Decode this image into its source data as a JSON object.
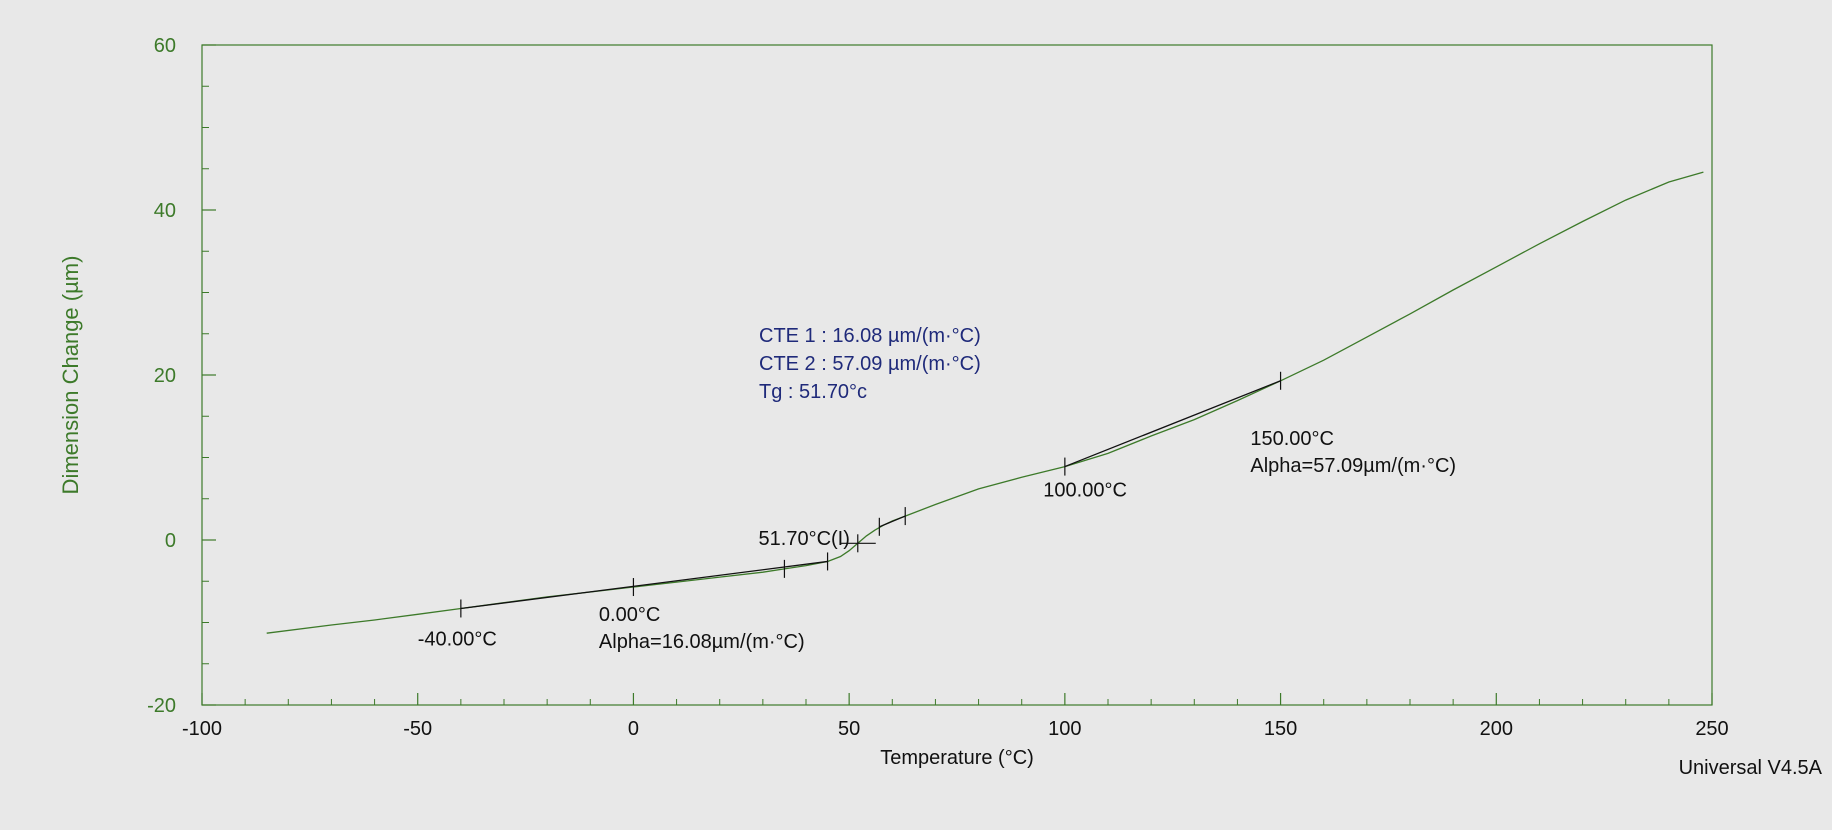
{
  "chart_data": {
    "type": "line",
    "title": "",
    "xlabel": "Temperature (°C)",
    "ylabel": "Dimension Change (µm)",
    "xlim": [
      -100,
      250
    ],
    "ylim": [
      -20,
      60
    ],
    "x_ticks": [
      -100,
      -50,
      0,
      50,
      100,
      150,
      200,
      250
    ],
    "y_ticks": [
      -20,
      0,
      20,
      40,
      60
    ],
    "x_tick_labels": [
      "-100",
      "-50",
      "0",
      "50",
      "100",
      "150",
      "200",
      "250"
    ],
    "y_tick_labels": [
      "-20",
      "0",
      "20",
      "40",
      "60"
    ],
    "grid": false,
    "line_color": "#3d7a2a",
    "fit_color": "#111111",
    "series": [
      {
        "x": [
          -85,
          -70,
          -60,
          -50,
          -40,
          -30,
          -20,
          -10,
          0,
          10,
          20,
          30,
          35,
          40,
          45,
          48,
          50,
          52,
          54,
          56,
          58,
          60,
          63,
          70,
          80,
          90,
          100,
          110,
          120,
          130,
          140,
          150,
          160,
          170,
          180,
          190,
          200,
          210,
          220,
          230,
          240,
          248
        ],
        "y": [
          -11.3,
          -10.3,
          -9.7,
          -9.0,
          -8.3,
          -7.6,
          -6.9,
          -6.3,
          -5.7,
          -5.1,
          -4.5,
          -3.9,
          -3.5,
          -3.1,
          -2.6,
          -2.0,
          -1.3,
          -0.4,
          0.5,
          1.2,
          1.8,
          2.3,
          2.9,
          4.3,
          6.2,
          7.6,
          8.9,
          10.5,
          12.6,
          14.6,
          16.9,
          19.3,
          21.8,
          24.6,
          27.4,
          30.3,
          33.1,
          35.9,
          38.6,
          41.2,
          43.4,
          44.6
        ]
      }
    ],
    "markers": [
      {
        "x": -40,
        "y": -8.3
      },
      {
        "x": 0,
        "y": -5.7
      },
      {
        "x": 35,
        "y": -3.5
      },
      {
        "x": 45,
        "y": -2.6
      },
      {
        "x": 52,
        "y": -0.4
      },
      {
        "x": 57,
        "y": 1.6
      },
      {
        "x": 63,
        "y": 2.9
      },
      {
        "x": 100,
        "y": 8.9
      },
      {
        "x": 150,
        "y": 19.3
      }
    ],
    "fit_segments": [
      {
        "x": [
          -40,
          45
        ],
        "y": [
          -8.3,
          -2.6
        ]
      },
      {
        "x": [
          57,
          63
        ],
        "y": [
          1.6,
          2.9
        ]
      },
      {
        "x": [
          100,
          150
        ],
        "y": [
          8.9,
          19.3
        ]
      }
    ],
    "annotations": [
      {
        "lines": [
          "-40.00°C"
        ],
        "x": -50,
        "y": -12.8
      },
      {
        "lines": [
          "0.00°C",
          "Alpha=16.08µm/(m·°C)"
        ],
        "x": -8,
        "y": -9.8
      },
      {
        "lines": [
          "51.70°C(I)"
        ],
        "x": 29,
        "y": -0.6
      },
      {
        "lines": [
          "100.00°C"
        ],
        "x": 95,
        "y": 5.3
      },
      {
        "lines": [
          "150.00°C",
          "Alpha=57.09µm/(m·°C)"
        ],
        "x": 143,
        "y": 11.5
      }
    ],
    "summary": [
      "CTE 1 : 16.08 µm/(m·°C)",
      "CTE 2 : 57.09 µm/(m·°C)",
      "Tg : 51.70°c"
    ],
    "footer": "Universal V4.5A"
  }
}
